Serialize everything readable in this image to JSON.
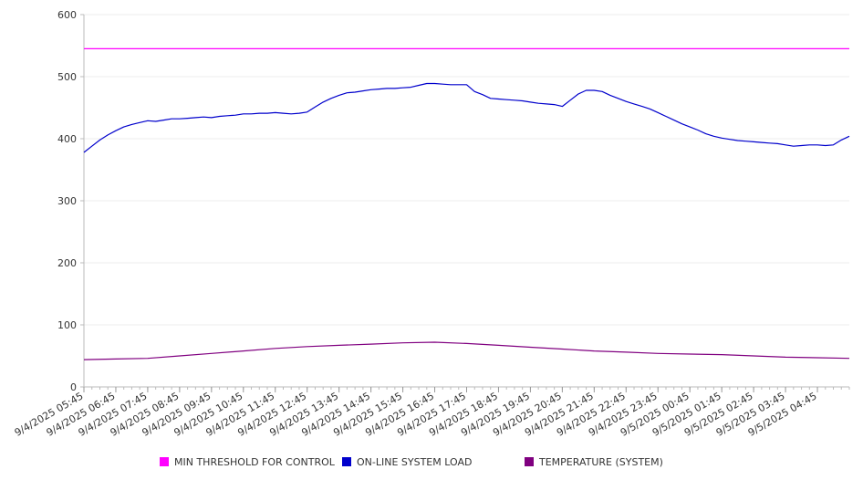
{
  "chart_data": {
    "type": "line",
    "title": "",
    "xlabel": "",
    "ylabel": "",
    "ylim": [
      0,
      600
    ],
    "yticks": [
      "0",
      "100",
      "200",
      "300",
      "400",
      "500",
      "600"
    ],
    "grid": true,
    "legend_position": "bottom",
    "x_ticks": [
      "9/4/2025 05:45",
      "9/4/2025 06:45",
      "9/4/2025 07:45",
      "9/4/2025 08:45",
      "9/4/2025 09:45",
      "9/4/2025 10:45",
      "9/4/2025 11:45",
      "9/4/2025 12:45",
      "9/4/2025 13:45",
      "9/4/2025 14:45",
      "9/4/2025 15:45",
      "9/4/2025 16:45",
      "9/4/2025 17:45",
      "9/4/2025 18:45",
      "9/4/2025 19:45",
      "9/4/2025 20:45",
      "9/4/2025 21:45",
      "9/4/2025 22:45",
      "9/4/2025 23:45",
      "9/5/2025 00:45",
      "9/5/2025 01:45",
      "9/5/2025 02:45",
      "9/5/2025 03:45",
      "9/5/2025 04:45"
    ],
    "x_start": "9/4/2025 05:45",
    "x_end": "9/5/2025 05:45",
    "series": [
      {
        "name": "MIN THRESHOLD FOR CONTROL",
        "color": "#ff00ff",
        "points": [
          [
            "9/4/2025 05:45",
            545
          ],
          [
            "9/5/2025 05:45",
            545
          ]
        ]
      },
      {
        "name": "ON-LINE SYSTEM LOAD",
        "color": "#0000cc",
        "points": [
          [
            "9/4/2025 05:45",
            378
          ],
          [
            "9/4/2025 06:00",
            388
          ],
          [
            "9/4/2025 06:15",
            398
          ],
          [
            "9/4/2025 06:30",
            406
          ],
          [
            "9/4/2025 06:45",
            413
          ],
          [
            "9/4/2025 07:00",
            419
          ],
          [
            "9/4/2025 07:15",
            423
          ],
          [
            "9/4/2025 07:30",
            426
          ],
          [
            "9/4/2025 07:45",
            429
          ],
          [
            "9/4/2025 08:00",
            428
          ],
          [
            "9/4/2025 08:15",
            430
          ],
          [
            "9/4/2025 08:30",
            432
          ],
          [
            "9/4/2025 08:45",
            432
          ],
          [
            "9/4/2025 09:00",
            433
          ],
          [
            "9/4/2025 09:15",
            434
          ],
          [
            "9/4/2025 09:30",
            435
          ],
          [
            "9/4/2025 09:45",
            434
          ],
          [
            "9/4/2025 10:00",
            436
          ],
          [
            "9/4/2025 10:15",
            437
          ],
          [
            "9/4/2025 10:30",
            438
          ],
          [
            "9/4/2025 10:45",
            440
          ],
          [
            "9/4/2025 11:00",
            440
          ],
          [
            "9/4/2025 11:15",
            441
          ],
          [
            "9/4/2025 11:30",
            441
          ],
          [
            "9/4/2025 11:45",
            442
          ],
          [
            "9/4/2025 12:00",
            441
          ],
          [
            "9/4/2025 12:15",
            440
          ],
          [
            "9/4/2025 12:30",
            441
          ],
          [
            "9/4/2025 12:45",
            443
          ],
          [
            "9/4/2025 13:00",
            451
          ],
          [
            "9/4/2025 13:15",
            459
          ],
          [
            "9/4/2025 13:30",
            465
          ],
          [
            "9/4/2025 13:45",
            470
          ],
          [
            "9/4/2025 14:00",
            474
          ],
          [
            "9/4/2025 14:15",
            475
          ],
          [
            "9/4/2025 14:30",
            477
          ],
          [
            "9/4/2025 14:45",
            479
          ],
          [
            "9/4/2025 15:00",
            480
          ],
          [
            "9/4/2025 15:15",
            481
          ],
          [
            "9/4/2025 15:30",
            481
          ],
          [
            "9/4/2025 15:45",
            482
          ],
          [
            "9/4/2025 16:00",
            483
          ],
          [
            "9/4/2025 16:15",
            486
          ],
          [
            "9/4/2025 16:30",
            489
          ],
          [
            "9/4/2025 16:45",
            489
          ],
          [
            "9/4/2025 17:00",
            488
          ],
          [
            "9/4/2025 17:15",
            487
          ],
          [
            "9/4/2025 17:30",
            487
          ],
          [
            "9/4/2025 17:45",
            487
          ],
          [
            "9/4/2025 18:00",
            476
          ],
          [
            "9/4/2025 18:15",
            471
          ],
          [
            "9/4/2025 18:30",
            465
          ],
          [
            "9/4/2025 18:45",
            464
          ],
          [
            "9/4/2025 19:00",
            463
          ],
          [
            "9/4/2025 19:15",
            462
          ],
          [
            "9/4/2025 19:30",
            461
          ],
          [
            "9/4/2025 19:45",
            459
          ],
          [
            "9/4/2025 20:00",
            457
          ],
          [
            "9/4/2025 20:15",
            456
          ],
          [
            "9/4/2025 20:30",
            455
          ],
          [
            "9/4/2025 20:45",
            452
          ],
          [
            "9/4/2025 21:00",
            462
          ],
          [
            "9/4/2025 21:15",
            472
          ],
          [
            "9/4/2025 21:30",
            478
          ],
          [
            "9/4/2025 21:45",
            478
          ],
          [
            "9/4/2025 22:00",
            476
          ],
          [
            "9/4/2025 22:15",
            470
          ],
          [
            "9/4/2025 22:30",
            465
          ],
          [
            "9/4/2025 22:45",
            460
          ],
          [
            "9/4/2025 23:00",
            456
          ],
          [
            "9/4/2025 23:15",
            452
          ],
          [
            "9/4/2025 23:30",
            448
          ],
          [
            "9/4/2025 23:45",
            442
          ],
          [
            "9/5/2025 00:00",
            436
          ],
          [
            "9/5/2025 00:15",
            430
          ],
          [
            "9/5/2025 00:30",
            424
          ],
          [
            "9/5/2025 00:45",
            419
          ],
          [
            "9/5/2025 01:00",
            414
          ],
          [
            "9/5/2025 01:15",
            408
          ],
          [
            "9/5/2025 01:30",
            404
          ],
          [
            "9/5/2025 01:45",
            401
          ],
          [
            "9/5/2025 02:00",
            399
          ],
          [
            "9/5/2025 02:15",
            397
          ],
          [
            "9/5/2025 02:30",
            396
          ],
          [
            "9/5/2025 02:45",
            395
          ],
          [
            "9/5/2025 03:00",
            394
          ],
          [
            "9/5/2025 03:15",
            393
          ],
          [
            "9/5/2025 03:30",
            392
          ],
          [
            "9/5/2025 03:45",
            390
          ],
          [
            "9/5/2025 04:00",
            388
          ],
          [
            "9/5/2025 04:15",
            389
          ],
          [
            "9/5/2025 04:30",
            390
          ],
          [
            "9/5/2025 04:45",
            390
          ],
          [
            "9/5/2025 05:00",
            389
          ],
          [
            "9/5/2025 05:15",
            390
          ],
          [
            "9/5/2025 05:30",
            398
          ],
          [
            "9/5/2025 05:45",
            404
          ]
        ]
      },
      {
        "name": "TEMPERATURE (SYSTEM)",
        "color": "#800080",
        "points": [
          [
            "9/4/2025 05:45",
            44
          ],
          [
            "9/4/2025 06:45",
            45
          ],
          [
            "9/4/2025 07:45",
            46
          ],
          [
            "9/4/2025 08:45",
            50
          ],
          [
            "9/4/2025 09:45",
            54
          ],
          [
            "9/4/2025 10:45",
            58
          ],
          [
            "9/4/2025 11:45",
            62
          ],
          [
            "9/4/2025 12:45",
            65
          ],
          [
            "9/4/2025 13:45",
            67
          ],
          [
            "9/4/2025 14:45",
            69
          ],
          [
            "9/4/2025 15:45",
            71
          ],
          [
            "9/4/2025 16:45",
            72
          ],
          [
            "9/4/2025 17:45",
            70
          ],
          [
            "9/4/2025 18:45",
            67
          ],
          [
            "9/4/2025 19:45",
            64
          ],
          [
            "9/4/2025 20:45",
            61
          ],
          [
            "9/4/2025 21:45",
            58
          ],
          [
            "9/4/2025 22:45",
            56
          ],
          [
            "9/4/2025 23:45",
            54
          ],
          [
            "9/5/2025 00:45",
            53
          ],
          [
            "9/5/2025 01:45",
            52
          ],
          [
            "9/5/2025 02:45",
            50
          ],
          [
            "9/5/2025 03:45",
            48
          ],
          [
            "9/5/2025 04:45",
            47
          ],
          [
            "9/5/2025 05:45",
            46
          ]
        ]
      }
    ]
  }
}
